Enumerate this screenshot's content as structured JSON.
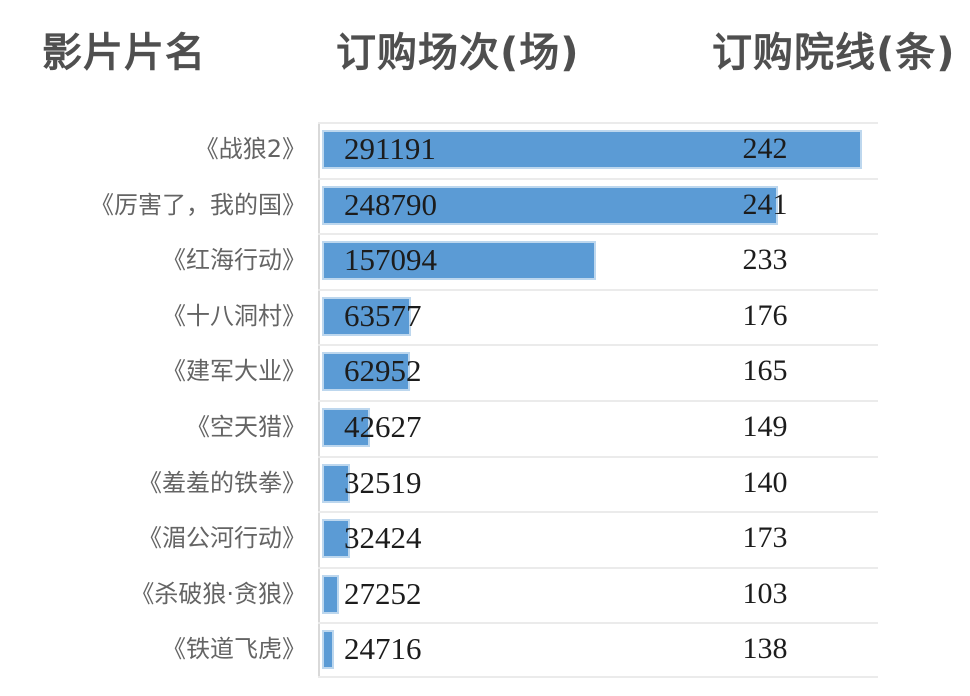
{
  "header": {
    "movie": "影片片名",
    "sessions": "订购场次(场)",
    "cinemas": "订购院线(条)"
  },
  "chart_data": {
    "type": "bar",
    "orientation": "horizontal",
    "title": "",
    "categories": [
      "《战狼2》",
      "《厉害了，我的国》",
      "《红海行动》",
      "《十八洞村》",
      "《建军大业》",
      "《空天猎》",
      "《羞羞的铁拳》",
      "《湄公河行动》",
      "《杀破狼·贪狼》",
      "《铁道飞虎》"
    ],
    "series": [
      {
        "name": "订购场次(场)",
        "values": [
          291191,
          248790,
          157094,
          63577,
          62952,
          42627,
          32519,
          32424,
          27252,
          24716
        ]
      },
      {
        "name": "订购院线(条)",
        "values": [
          242,
          241,
          233,
          176,
          165,
          149,
          140,
          173,
          103,
          138
        ]
      }
    ],
    "bar_series": "订购场次(场)",
    "xlim": [
      18500,
      291191
    ],
    "grid": true,
    "legend_position": "none",
    "bar_color": "#5b9bd5",
    "bar_border_color": "#bdd7ee",
    "gridline_color": "#ebebeb",
    "axis_line_color": "#d9d9d9",
    "header_text_color": "#4f4f4f",
    "label_text_color": "#646464",
    "value_text_color": "#1c1c1c"
  }
}
